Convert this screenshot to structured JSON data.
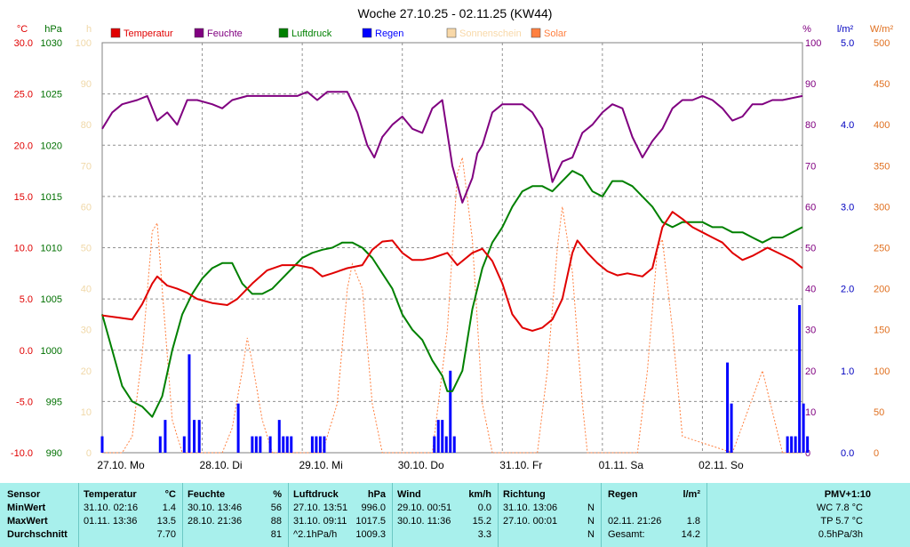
{
  "chart_data": {
    "type": "line",
    "title": "Woche 27.10.25 - 02.11.25 (KW44)",
    "left_axes": [
      {
        "unit": "°C",
        "color": "#e00000",
        "ticks": [
          "30.0",
          "25.0",
          "20.0",
          "15.0",
          "10.0",
          "5.0",
          "0.0",
          "-5.0",
          "-10.0"
        ]
      },
      {
        "unit": "hPa",
        "color": "#007000",
        "ticks": [
          "1030",
          "1025",
          "1020",
          "1015",
          "1010",
          "1005",
          "1000",
          "995",
          "990"
        ]
      },
      {
        "unit": "h",
        "color": "#f0d8a8",
        "ticks": [
          "100",
          "90",
          "80",
          "70",
          "60",
          "50",
          "40",
          "30",
          "20",
          "10",
          "0"
        ]
      }
    ],
    "right_axes": [
      {
        "unit": "%",
        "color": "#800080",
        "ticks": [
          "100",
          "90",
          "80",
          "70",
          "60",
          "50",
          "40",
          "30",
          "20",
          "10",
          "0"
        ]
      },
      {
        "unit": "l/m²",
        "color": "#0000c0",
        "ticks": [
          "5.0",
          "4.0",
          "3.0",
          "2.0",
          "1.0",
          "0.0"
        ]
      },
      {
        "unit": "W/m²",
        "color": "#e07020",
        "ticks": [
          "500",
          "450",
          "400",
          "350",
          "300",
          "250",
          "200",
          "150",
          "100",
          "50",
          "0"
        ]
      }
    ],
    "x_labels": [
      "27.10. Mo",
      "28.10. Di",
      "29.10. Mi",
      "30.10. Do",
      "31.10. Fr",
      "01.11. Sa",
      "02.11. So"
    ],
    "legend": [
      {
        "name": "Temperatur",
        "color": "#e00000"
      },
      {
        "name": "Feuchte",
        "color": "#800080"
      },
      {
        "name": "Luftdruck",
        "color": "#008000"
      },
      {
        "name": "Regen",
        "color": "#0000ff"
      },
      {
        "name": "Sonnenschein",
        "color": "#f8d8a8"
      },
      {
        "name": "Solar",
        "color": "#ff8040"
      }
    ],
    "x_range_days": [
      0,
      7
    ],
    "temperature_c": [
      [
        0,
        3.4
      ],
      [
        0.15,
        3.2
      ],
      [
        0.3,
        3.0
      ],
      [
        0.4,
        4.5
      ],
      [
        0.5,
        6.5
      ],
      [
        0.55,
        7.2
      ],
      [
        0.65,
        6.3
      ],
      [
        0.75,
        6.0
      ],
      [
        0.85,
        5.6
      ],
      [
        0.95,
        5.0
      ],
      [
        1.1,
        4.6
      ],
      [
        1.25,
        4.4
      ],
      [
        1.35,
        5.0
      ],
      [
        1.5,
        6.5
      ],
      [
        1.65,
        7.8
      ],
      [
        1.8,
        8.3
      ],
      [
        1.95,
        8.3
      ],
      [
        2.1,
        8.0
      ],
      [
        2.2,
        7.2
      ],
      [
        2.3,
        7.5
      ],
      [
        2.45,
        8.0
      ],
      [
        2.6,
        8.3
      ],
      [
        2.7,
        9.8
      ],
      [
        2.8,
        10.6
      ],
      [
        2.9,
        10.7
      ],
      [
        3.0,
        9.5
      ],
      [
        3.1,
        8.8
      ],
      [
        3.2,
        8.8
      ],
      [
        3.3,
        9.0
      ],
      [
        3.45,
        9.5
      ],
      [
        3.55,
        8.3
      ],
      [
        3.7,
        9.5
      ],
      [
        3.8,
        9.9
      ],
      [
        3.9,
        8.7
      ],
      [
        4.0,
        6.5
      ],
      [
        4.1,
        3.5
      ],
      [
        4.2,
        2.2
      ],
      [
        4.3,
        1.9
      ],
      [
        4.4,
        2.2
      ],
      [
        4.5,
        3.0
      ],
      [
        4.6,
        5.0
      ],
      [
        4.7,
        9.5
      ],
      [
        4.75,
        10.7
      ],
      [
        4.85,
        9.5
      ],
      [
        4.95,
        8.5
      ],
      [
        5.05,
        7.7
      ],
      [
        5.15,
        7.3
      ],
      [
        5.25,
        7.5
      ],
      [
        5.4,
        7.2
      ],
      [
        5.5,
        8.0
      ],
      [
        5.6,
        12.0
      ],
      [
        5.7,
        13.5
      ],
      [
        5.8,
        12.8
      ],
      [
        5.9,
        12.0
      ],
      [
        6.0,
        11.5
      ],
      [
        6.1,
        11.0
      ],
      [
        6.2,
        10.5
      ],
      [
        6.3,
        9.5
      ],
      [
        6.4,
        8.8
      ],
      [
        6.5,
        9.2
      ],
      [
        6.65,
        10.0
      ],
      [
        6.8,
        9.3
      ],
      [
        6.9,
        8.8
      ],
      [
        7.0,
        8.0
      ]
    ],
    "humidity_pct": [
      [
        0,
        79
      ],
      [
        0.1,
        83
      ],
      [
        0.2,
        85
      ],
      [
        0.35,
        86
      ],
      [
        0.45,
        87
      ],
      [
        0.55,
        81
      ],
      [
        0.65,
        83
      ],
      [
        0.75,
        80
      ],
      [
        0.85,
        86
      ],
      [
        0.95,
        86
      ],
      [
        1.1,
        85
      ],
      [
        1.2,
        84
      ],
      [
        1.3,
        86
      ],
      [
        1.45,
        87
      ],
      [
        1.6,
        87
      ],
      [
        1.7,
        87
      ],
      [
        1.85,
        87
      ],
      [
        1.95,
        87
      ],
      [
        2.05,
        88
      ],
      [
        2.15,
        86
      ],
      [
        2.25,
        88
      ],
      [
        2.35,
        88
      ],
      [
        2.45,
        88
      ],
      [
        2.55,
        83
      ],
      [
        2.65,
        75
      ],
      [
        2.72,
        72
      ],
      [
        2.8,
        77
      ],
      [
        2.9,
        80
      ],
      [
        3.0,
        82
      ],
      [
        3.1,
        79
      ],
      [
        3.2,
        78
      ],
      [
        3.3,
        84
      ],
      [
        3.4,
        86
      ],
      [
        3.5,
        70
      ],
      [
        3.6,
        61
      ],
      [
        3.7,
        67
      ],
      [
        3.75,
        73
      ],
      [
        3.8,
        75
      ],
      [
        3.9,
        83
      ],
      [
        4.0,
        85
      ],
      [
        4.1,
        85
      ],
      [
        4.2,
        85
      ],
      [
        4.3,
        83
      ],
      [
        4.4,
        79
      ],
      [
        4.5,
        66
      ],
      [
        4.6,
        71
      ],
      [
        4.7,
        72
      ],
      [
        4.8,
        78
      ],
      [
        4.9,
        80
      ],
      [
        5.0,
        83
      ],
      [
        5.1,
        85
      ],
      [
        5.2,
        84
      ],
      [
        5.3,
        77
      ],
      [
        5.4,
        72
      ],
      [
        5.5,
        76
      ],
      [
        5.6,
        79
      ],
      [
        5.7,
        84
      ],
      [
        5.8,
        86
      ],
      [
        5.9,
        86
      ],
      [
        6.0,
        87
      ],
      [
        6.1,
        86
      ],
      [
        6.2,
        84
      ],
      [
        6.3,
        81
      ],
      [
        6.4,
        82
      ],
      [
        6.5,
        85
      ],
      [
        6.6,
        85
      ],
      [
        6.7,
        86
      ],
      [
        6.8,
        86
      ],
      [
        7.0,
        87
      ]
    ],
    "pressure_hpa": [
      [
        0,
        1003.5
      ],
      [
        0.1,
        1000
      ],
      [
        0.2,
        996.5
      ],
      [
        0.3,
        995
      ],
      [
        0.4,
        994.5
      ],
      [
        0.5,
        993.5
      ],
      [
        0.6,
        995.5
      ],
      [
        0.7,
        1000
      ],
      [
        0.8,
        1003.5
      ],
      [
        0.9,
        1005.5
      ],
      [
        1.0,
        1007
      ],
      [
        1.1,
        1008
      ],
      [
        1.2,
        1008.5
      ],
      [
        1.3,
        1008.5
      ],
      [
        1.4,
        1006.5
      ],
      [
        1.5,
        1005.5
      ],
      [
        1.6,
        1005.5
      ],
      [
        1.7,
        1006
      ],
      [
        1.8,
        1007
      ],
      [
        1.9,
        1008
      ],
      [
        2.0,
        1009
      ],
      [
        2.1,
        1009.5
      ],
      [
        2.2,
        1009.8
      ],
      [
        2.3,
        1010
      ],
      [
        2.4,
        1010.5
      ],
      [
        2.5,
        1010.5
      ],
      [
        2.6,
        1010
      ],
      [
        2.7,
        1009
      ],
      [
        2.8,
        1007.5
      ],
      [
        2.9,
        1006
      ],
      [
        3.0,
        1003.5
      ],
      [
        3.1,
        1002
      ],
      [
        3.2,
        1001
      ],
      [
        3.3,
        999
      ],
      [
        3.4,
        997.5
      ],
      [
        3.45,
        996
      ],
      [
        3.5,
        996
      ],
      [
        3.6,
        998
      ],
      [
        3.7,
        1004
      ],
      [
        3.8,
        1008
      ],
      [
        3.9,
        1010.5
      ],
      [
        4.0,
        1012
      ],
      [
        4.1,
        1014
      ],
      [
        4.2,
        1015.5
      ],
      [
        4.3,
        1016
      ],
      [
        4.4,
        1016
      ],
      [
        4.5,
        1015.5
      ],
      [
        4.6,
        1016.5
      ],
      [
        4.7,
        1017.5
      ],
      [
        4.8,
        1017
      ],
      [
        4.9,
        1015.5
      ],
      [
        5.0,
        1015
      ],
      [
        5.1,
        1016.5
      ],
      [
        5.2,
        1016.5
      ],
      [
        5.3,
        1016
      ],
      [
        5.4,
        1015
      ],
      [
        5.5,
        1014
      ],
      [
        5.6,
        1012.5
      ],
      [
        5.7,
        1012
      ],
      [
        5.8,
        1012.5
      ],
      [
        5.9,
        1012.5
      ],
      [
        6.0,
        1012.5
      ],
      [
        6.1,
        1012
      ],
      [
        6.2,
        1012
      ],
      [
        6.3,
        1011.5
      ],
      [
        6.4,
        1011.5
      ],
      [
        6.5,
        1011
      ],
      [
        6.6,
        1010.5
      ],
      [
        6.7,
        1011
      ],
      [
        6.8,
        1011
      ],
      [
        6.9,
        1011.5
      ],
      [
        7.0,
        1012
      ]
    ],
    "solar_wm2": [
      [
        0,
        0
      ],
      [
        0.2,
        0
      ],
      [
        0.3,
        20
      ],
      [
        0.4,
        120
      ],
      [
        0.5,
        270
      ],
      [
        0.55,
        280
      ],
      [
        0.6,
        200
      ],
      [
        0.7,
        40
      ],
      [
        0.8,
        0
      ],
      [
        1.2,
        0
      ],
      [
        1.3,
        30
      ],
      [
        1.4,
        100
      ],
      [
        1.45,
        140
      ],
      [
        1.5,
        110
      ],
      [
        1.6,
        40
      ],
      [
        1.7,
        0
      ],
      [
        2.2,
        0
      ],
      [
        2.35,
        60
      ],
      [
        2.45,
        200
      ],
      [
        2.5,
        230
      ],
      [
        2.6,
        200
      ],
      [
        2.7,
        60
      ],
      [
        2.8,
        0
      ],
      [
        3.3,
        0
      ],
      [
        3.45,
        150
      ],
      [
        3.55,
        340
      ],
      [
        3.6,
        360
      ],
      [
        3.7,
        260
      ],
      [
        3.8,
        60
      ],
      [
        3.9,
        0
      ],
      [
        4.35,
        0
      ],
      [
        4.45,
        100
      ],
      [
        4.55,
        250
      ],
      [
        4.6,
        300
      ],
      [
        4.7,
        220
      ],
      [
        4.8,
        60
      ],
      [
        4.85,
        0
      ],
      [
        5.35,
        0
      ],
      [
        5.45,
        100
      ],
      [
        5.55,
        250
      ],
      [
        5.6,
        260
      ],
      [
        5.7,
        150
      ],
      [
        5.8,
        20
      ],
      [
        6.3,
        0
      ],
      [
        6.45,
        50
      ],
      [
        6.6,
        100
      ],
      [
        6.7,
        50
      ],
      [
        6.8,
        0
      ],
      [
        7.0,
        0
      ]
    ],
    "rain_lm2": [
      [
        0.0,
        0.2
      ],
      [
        0.58,
        0.2
      ],
      [
        0.63,
        0.4
      ],
      [
        0.82,
        0.2
      ],
      [
        0.87,
        1.2
      ],
      [
        0.92,
        0.4
      ],
      [
        0.97,
        0.4
      ],
      [
        1.36,
        0.6
      ],
      [
        1.5,
        0.2
      ],
      [
        1.54,
        0.2
      ],
      [
        1.58,
        0.2
      ],
      [
        1.68,
        0.2
      ],
      [
        1.77,
        0.4
      ],
      [
        1.81,
        0.2
      ],
      [
        1.85,
        0.2
      ],
      [
        1.89,
        0.2
      ],
      [
        2.1,
        0.2
      ],
      [
        2.14,
        0.2
      ],
      [
        2.18,
        0.2
      ],
      [
        2.22,
        0.2
      ],
      [
        3.32,
        0.2
      ],
      [
        3.36,
        0.4
      ],
      [
        3.4,
        0.4
      ],
      [
        3.44,
        0.2
      ],
      [
        3.48,
        1.0
      ],
      [
        3.52,
        0.2
      ],
      [
        6.25,
        1.1
      ],
      [
        6.29,
        0.6
      ],
      [
        6.85,
        0.2
      ],
      [
        6.89,
        0.2
      ],
      [
        6.93,
        0.2
      ],
      [
        6.97,
        1.8
      ],
      [
        7.01,
        0.6
      ],
      [
        7.05,
        0.2
      ]
    ]
  },
  "table": {
    "sensor": {
      "header": "Sensor",
      "rows": [
        "MinWert",
        "MaxWert",
        "Durchschnitt"
      ]
    },
    "temperatur": {
      "header": "Temperatur",
      "unit": "°C",
      "rows": [
        [
          "31.10.  02:16",
          "1.4"
        ],
        [
          "01.11.  13:36",
          "13.5"
        ],
        [
          "",
          "7.70"
        ]
      ]
    },
    "feuchte": {
      "header": "Feuchte",
      "unit": "%",
      "rows": [
        [
          "30.10.  13:46",
          "56"
        ],
        [
          "28.10.  21:36",
          "88"
        ],
        [
          "",
          "81"
        ]
      ]
    },
    "luftdruck": {
      "header": "Luftdruck",
      "unit": "hPa",
      "rows": [
        [
          "27.10.  13:51",
          "996.0"
        ],
        [
          "31.10.  09:11",
          "1017.5"
        ],
        [
          "^2.1hPa/h",
          "1009.3"
        ]
      ]
    },
    "wind": {
      "header": "Wind",
      "unit": "km/h",
      "rows": [
        [
          "29.10.  00:51",
          "0.0"
        ],
        [
          "30.10.  11:36",
          "15.2"
        ],
        [
          "",
          "3.3"
        ]
      ]
    },
    "richtung": {
      "header": "Richtung",
      "rows": [
        [
          "31.10.  13:06",
          "N"
        ],
        [
          "27.10.  00:01",
          "N"
        ],
        [
          "",
          "N"
        ]
      ]
    },
    "regen": {
      "header": "Regen",
      "unit": "l/m²",
      "rows": [
        [
          "",
          ""
        ],
        [
          "02.11.  21:26",
          "1.8"
        ],
        [
          "Gesamt:",
          "14.2"
        ]
      ]
    },
    "pmv": {
      "header": "PMV+1:10",
      "rows": [
        "WC 7.8 °C",
        "TP 5.7 °C",
        "0.5hPa/3h"
      ]
    }
  }
}
